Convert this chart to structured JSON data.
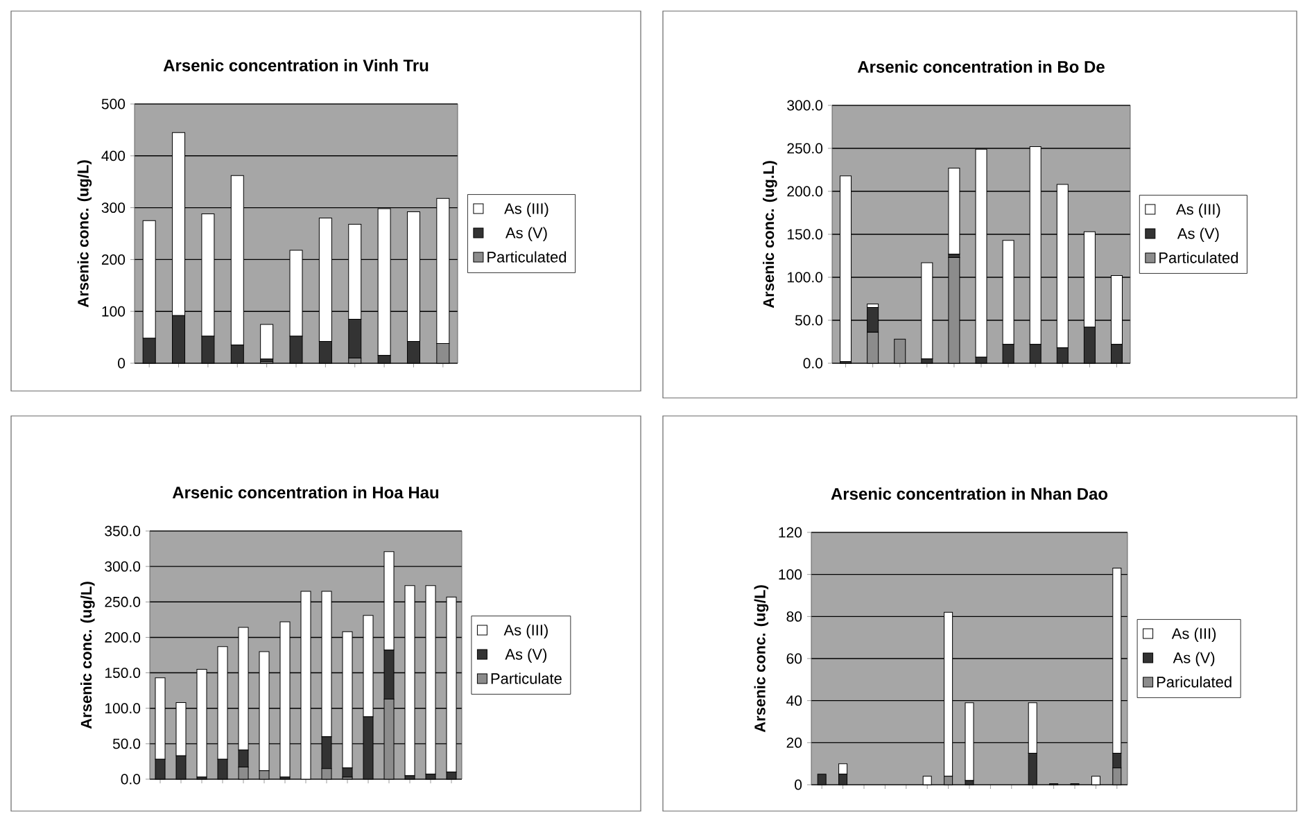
{
  "chart_data": [
    {
      "type": "bar",
      "stacked": true,
      "title": "Arsenic concentration in Vinh Tru",
      "ylabel": "Arsenic conc. (ug/L)",
      "categories": [
        null,
        null,
        null,
        null,
        null,
        null,
        null,
        null,
        null,
        null,
        null
      ],
      "ylim": [
        0,
        500
      ],
      "yticks": [
        0,
        100,
        200,
        300,
        400,
        500
      ],
      "grid": "y",
      "legend": "right",
      "tick_labels": "y",
      "series": [
        {
          "name": "Particulated",
          "color": "#8c8c8c",
          "values": [
            0,
            0,
            0,
            0,
            3,
            0,
            0,
            10,
            0,
            0,
            38
          ]
        },
        {
          "name": "As (V)",
          "color": "#333333",
          "values": [
            48,
            92,
            52,
            35,
            5,
            52,
            42,
            75,
            15,
            42,
            0
          ]
        },
        {
          "name": "As (III)",
          "color": "#ffffff",
          "values": [
            227,
            353,
            236,
            327,
            67,
            166,
            238,
            183,
            283,
            250,
            280
          ]
        }
      ]
    },
    {
      "type": "bar",
      "stacked": true,
      "title": "Arsenic concentration in  Bo De",
      "ylabel": "Arsenic conc. (ug.L)",
      "categories": [
        null,
        null,
        null,
        null,
        null,
        null,
        null,
        null,
        null,
        null,
        null
      ],
      "ylim": [
        0,
        300
      ],
      "yticks": [
        {
          "value": 0,
          "label": "0.0"
        },
        {
          "value": 50,
          "label": "50.0"
        },
        {
          "value": 100,
          "label": "100.0"
        },
        {
          "value": 150,
          "label": "150.0"
        },
        {
          "value": 200,
          "label": "200.0"
        },
        {
          "value": 250,
          "label": "250.0"
        },
        {
          "value": 300,
          "label": "300.0"
        }
      ],
      "grid": "y",
      "legend": "right",
      "tick_labels": "y",
      "series": [
        {
          "name": "Particulated",
          "color": "#8c8c8c",
          "values": [
            0,
            36,
            28,
            0,
            123,
            0,
            0,
            0,
            0,
            0,
            0
          ]
        },
        {
          "name": "As (V)",
          "color": "#333333",
          "values": [
            2,
            29,
            0,
            5,
            4,
            7,
            22,
            22,
            18,
            42,
            22
          ]
        },
        {
          "name": "As (III)",
          "color": "#ffffff",
          "values": [
            216,
            4,
            0,
            112,
            100,
            242,
            121,
            230,
            190,
            111,
            80
          ]
        }
      ]
    },
    {
      "type": "bar",
      "stacked": true,
      "title": "Arsenic concentration in Hoa Hau",
      "ylabel": "Arsenic conc. (ug/L)",
      "categories": [
        null,
        null,
        null,
        null,
        null,
        null,
        null,
        null,
        null,
        null,
        null,
        null,
        null,
        null,
        null
      ],
      "ylim": [
        0,
        350
      ],
      "yticks": [
        {
          "value": 0,
          "label": "0.0"
        },
        {
          "value": 50,
          "label": "50.0"
        },
        {
          "value": 100,
          "label": "100.0"
        },
        {
          "value": 150,
          "label": "150.0"
        },
        {
          "value": 200,
          "label": "200.0"
        },
        {
          "value": 250,
          "label": "250.0"
        },
        {
          "value": 300,
          "label": "300.0"
        },
        {
          "value": 350,
          "label": "350.0"
        }
      ],
      "grid": "y",
      "legend": "right",
      "tick_labels": "y",
      "series": [
        {
          "name": "Particulate",
          "color": "#8c8c8c",
          "values": [
            0,
            0,
            0,
            0,
            17,
            12,
            0,
            0,
            15,
            3,
            0,
            113,
            0,
            0,
            0
          ]
        },
        {
          "name": "As (V)",
          "color": "#333333",
          "values": [
            28,
            33,
            3,
            28,
            24,
            0,
            3,
            0,
            45,
            13,
            88,
            69,
            5,
            7,
            10
          ]
        },
        {
          "name": "As (III)",
          "color": "#ffffff",
          "values": [
            115,
            75,
            152,
            159,
            173,
            168,
            219,
            265,
            205,
            192,
            143,
            139,
            268,
            266,
            247
          ]
        }
      ]
    },
    {
      "type": "bar",
      "stacked": true,
      "title": "Arsenic concentration in Nhan Dao",
      "ylabel": "Arsenic conc. (ug/L)",
      "categories": [
        null,
        null,
        null,
        null,
        null,
        null,
        null,
        null,
        null,
        null,
        null,
        null,
        null,
        null,
        null
      ],
      "ylim": [
        0,
        120
      ],
      "yticks": [
        0,
        20,
        40,
        60,
        80,
        100,
        120
      ],
      "grid": "y",
      "legend": "right",
      "tick_labels": "y",
      "series": [
        {
          "name": "Pariculated",
          "color": "#8c8c8c",
          "values": [
            0,
            0,
            0,
            0,
            0,
            0,
            4,
            0,
            0,
            0,
            0,
            0,
            0,
            0,
            8
          ]
        },
        {
          "name": "As (V)",
          "color": "#333333",
          "values": [
            5,
            5,
            0,
            0,
            0,
            0,
            0,
            2,
            0,
            0,
            15,
            0.5,
            0.5,
            0,
            7
          ]
        },
        {
          "name": "As (III)",
          "color": "#ffffff",
          "values": [
            0,
            5,
            0,
            0,
            0,
            4,
            78,
            37,
            0,
            0,
            24,
            0,
            0,
            4,
            88
          ]
        }
      ]
    }
  ]
}
